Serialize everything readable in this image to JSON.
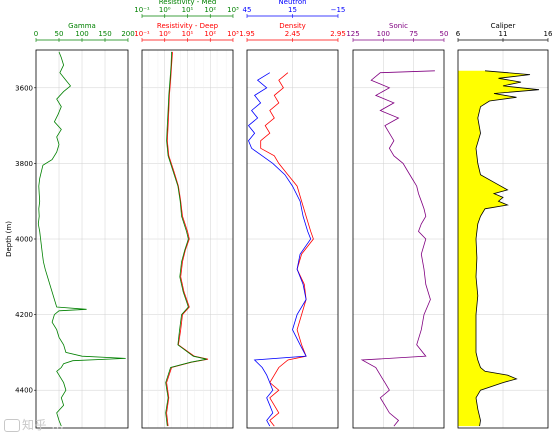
{
  "figure": {
    "watermark_text": "知乎 ..."
  },
  "chart_data": [
    {
      "type": "line",
      "title": "Gamma",
      "ylabel": "Depth (m)",
      "ylim": [
        3500,
        4500
      ],
      "xlim": [
        0,
        200
      ],
      "xscale": "linear",
      "xticks": [
        "0",
        "50",
        "100",
        "150",
        "200"
      ],
      "yticks": [
        "3600",
        "3800",
        "4000",
        "4200",
        "4400"
      ],
      "grid": true,
      "colors": {
        "line": "#008000",
        "axis": "#008000"
      },
      "series": [
        {
          "depth": [
            3505,
            3520,
            3540,
            3560,
            3580,
            3595,
            3610,
            3630,
            3650,
            3670,
            3690,
            3710,
            3730,
            3750,
            3770,
            3790,
            3805,
            3820,
            3840,
            3860,
            3880,
            3900,
            3920,
            3940,
            3960,
            3980,
            4000,
            4020,
            4040,
            4060,
            4080,
            4100,
            4120,
            4140,
            4160,
            4180,
            4186,
            4190,
            4200,
            4220,
            4240,
            4260,
            4280,
            4300,
            4310,
            4316,
            4322,
            4330,
            4340,
            4350,
            4360,
            4380,
            4400,
            4420,
            4440,
            4460,
            4480,
            4495
          ],
          "values": [
            50,
            55,
            60,
            52,
            65,
            75,
            60,
            45,
            55,
            48,
            40,
            55,
            45,
            50,
            45,
            35,
            15,
            12,
            8,
            6,
            7,
            8,
            6,
            7,
            5,
            8,
            10,
            12,
            14,
            16,
            20,
            25,
            30,
            35,
            40,
            45,
            110,
            50,
            40,
            35,
            45,
            50,
            60,
            65,
            100,
            195,
            80,
            60,
            55,
            45,
            50,
            60,
            65,
            55,
            60,
            45,
            50,
            55
          ]
        }
      ]
    },
    {
      "type": "line",
      "title": "Resistivity - Deep",
      "title_secondary": "Resistivity - Med",
      "ylim": [
        3500,
        4500
      ],
      "xlim": [
        0.1,
        1000
      ],
      "xscale": "log",
      "xticks": [
        "10⁻¹",
        "10⁰",
        "10¹",
        "10²",
        "10³"
      ],
      "xticks_secondary": [
        "10⁻¹",
        "10⁰",
        "10¹",
        "10²",
        "10³"
      ],
      "grid": true,
      "colors": {
        "deep": "#ff0000",
        "med": "#008000"
      },
      "series": [
        {
          "name": "Resistivity - Deep",
          "depth": [
            3505,
            3540,
            3580,
            3620,
            3660,
            3700,
            3740,
            3780,
            3820,
            3860,
            3900,
            3940,
            3980,
            4000,
            4030,
            4060,
            4100,
            4140,
            4180,
            4200,
            4240,
            4280,
            4310,
            4318,
            4326,
            4340,
            4380,
            4420,
            4460,
            4495
          ],
          "values": [
            2.2,
            2.0,
            1.8,
            1.6,
            1.5,
            1.4,
            1.3,
            1.5,
            2.5,
            4,
            5,
            6,
            10,
            12,
            8,
            6,
            5,
            7,
            12,
            6,
            5,
            4,
            20,
            80,
            15,
            2.0,
            1.2,
            1.5,
            1.2,
            1.4
          ]
        },
        {
          "name": "Resistivity - Med",
          "depth": [
            3505,
            3540,
            3580,
            3620,
            3660,
            3700,
            3740,
            3780,
            3820,
            3860,
            3900,
            3940,
            3980,
            4000,
            4030,
            4060,
            4100,
            4140,
            4180,
            4200,
            4240,
            4280,
            4310,
            4318,
            4326,
            4340,
            4380,
            4420,
            4460,
            4495
          ],
          "values": [
            2.0,
            1.9,
            1.7,
            1.5,
            1.4,
            1.3,
            1.2,
            1.4,
            2.3,
            3.8,
            4.8,
            5.5,
            9,
            11,
            7.5,
            5.5,
            4.6,
            6.5,
            11,
            5.5,
            4.5,
            3.8,
            18,
            70,
            14,
            1.8,
            1.1,
            1.4,
            1.1,
            1.3
          ]
        }
      ]
    },
    {
      "type": "line",
      "title": "Density",
      "title_secondary": "Neutron",
      "ylim": [
        3500,
        4500
      ],
      "xlim": [
        1.95,
        2.95
      ],
      "xlim_secondary": [
        45,
        -15
      ],
      "xscale": "linear",
      "xticks": [
        "1.95",
        "2.45",
        "2.95"
      ],
      "xticks_secondary": [
        "45",
        "15",
        "−15"
      ],
      "grid": true,
      "colors": {
        "density": "#ff0000",
        "neutron": "#0000ff"
      },
      "series": [
        {
          "name": "Density",
          "depth": [
            3560,
            3580,
            3600,
            3620,
            3640,
            3660,
            3680,
            3700,
            3720,
            3740,
            3760,
            3780,
            3800,
            3830,
            3860,
            3900,
            3940,
            3980,
            4000,
            4040,
            4080,
            4120,
            4160,
            4200,
            4240,
            4280,
            4310,
            4320,
            4340,
            4360,
            4380,
            4400,
            4420,
            4440,
            4460,
            4480,
            4495
          ],
          "values": [
            2.4,
            2.3,
            2.35,
            2.25,
            2.3,
            2.2,
            2.25,
            2.15,
            2.2,
            2.1,
            2.1,
            2.25,
            2.3,
            2.4,
            2.5,
            2.55,
            2.6,
            2.65,
            2.68,
            2.55,
            2.5,
            2.58,
            2.6,
            2.55,
            2.5,
            2.55,
            2.6,
            2.4,
            2.3,
            2.25,
            2.2,
            2.3,
            2.2,
            2.25,
            2.3,
            2.2,
            2.25
          ]
        },
        {
          "name": "Neutron",
          "depth": [
            3560,
            3580,
            3600,
            3620,
            3640,
            3660,
            3680,
            3700,
            3720,
            3740,
            3760,
            3780,
            3800,
            3830,
            3860,
            3900,
            3940,
            3980,
            4000,
            4040,
            4080,
            4120,
            4160,
            4200,
            4240,
            4280,
            4310,
            4320,
            4340,
            4360,
            4380,
            4400,
            4420,
            4440,
            4460,
            4480,
            4495
          ],
          "values": [
            30,
            38,
            32,
            40,
            36,
            42,
            38,
            44,
            40,
            44,
            42,
            35,
            28,
            20,
            15,
            10,
            8,
            5,
            3,
            10,
            12,
            8,
            6,
            12,
            15,
            10,
            6,
            40,
            35,
            32,
            30,
            28,
            32,
            30,
            28,
            32,
            30
          ]
        }
      ]
    },
    {
      "type": "line",
      "title": "Sonic",
      "ylim": [
        3500,
        4500
      ],
      "xlim": [
        140,
        40
      ],
      "xscale": "linear",
      "xticks": [
        "125",
        "100",
        "75",
        "50"
      ],
      "grid": true,
      "colors": {
        "line": "#800080",
        "axis": "#800080"
      },
      "series": [
        {
          "depth": [
            3555,
            3560,
            3580,
            3600,
            3620,
            3640,
            3660,
            3680,
            3700,
            3720,
            3740,
            3760,
            3780,
            3800,
            3820,
            3840,
            3860,
            3880,
            3900,
            3920,
            3940,
            3960,
            3980,
            4000,
            4040,
            4080,
            4120,
            4160,
            4200,
            4240,
            4280,
            4310,
            4320,
            4340,
            4360,
            4380,
            4400,
            4420,
            4440,
            4460,
            4480,
            4495
          ],
          "values": [
            50,
            110,
            120,
            100,
            115,
            95,
            110,
            90,
            105,
            100,
            95,
            100,
            95,
            85,
            80,
            75,
            70,
            68,
            65,
            62,
            60,
            65,
            68,
            60,
            65,
            62,
            60,
            55,
            62,
            65,
            70,
            60,
            130,
            115,
            110,
            105,
            100,
            110,
            105,
            100,
            90,
            95
          ]
        }
      ]
    },
    {
      "type": "area",
      "title": "Caliper",
      "ylim": [
        3500,
        4500
      ],
      "xlim": [
        6,
        16
      ],
      "xscale": "linear",
      "xticks": [
        "6",
        "11",
        "16"
      ],
      "grid": true,
      "colors": {
        "line": "#000000",
        "fill": "#ffff00"
      },
      "series": [
        {
          "depth": [
            3555,
            3565,
            3575,
            3585,
            3595,
            3605,
            3615,
            3625,
            3635,
            3650,
            3680,
            3720,
            3760,
            3800,
            3830,
            3850,
            3870,
            3880,
            3890,
            3900,
            3910,
            3920,
            3940,
            3960,
            4000,
            4050,
            4100,
            4150,
            4200,
            4250,
            4300,
            4320,
            4340,
            4350,
            4360,
            4370,
            4380,
            4400,
            4420,
            4450,
            4480,
            4495
          ],
          "values": [
            9,
            14,
            10.5,
            13,
            11,
            15,
            10,
            12.5,
            9.5,
            8.5,
            8.2,
            8.5,
            8.0,
            8.2,
            8.5,
            10,
            11.5,
            10,
            11,
            10.5,
            11.5,
            9,
            8.5,
            8.2,
            8.0,
            8.1,
            8.0,
            8.2,
            8.0,
            8.0,
            8.0,
            8.2,
            8.5,
            9,
            11.5,
            12.5,
            11,
            8.5,
            8.0,
            8.2,
            8.5,
            8.4
          ]
        }
      ]
    }
  ]
}
